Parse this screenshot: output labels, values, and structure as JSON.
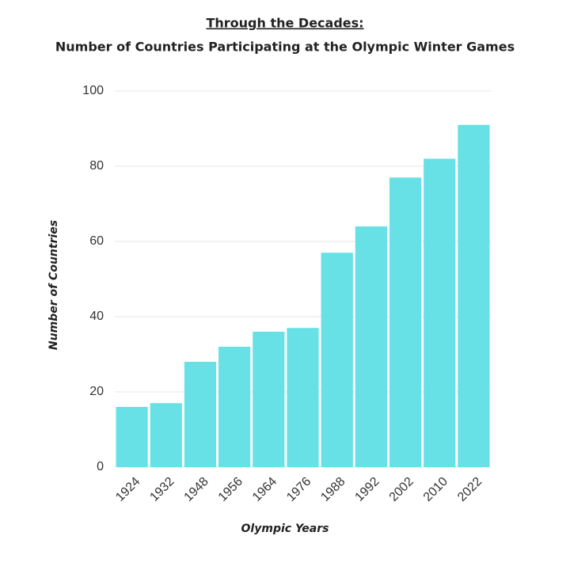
{
  "chart_data": {
    "type": "bar",
    "title": "Through the Decades:",
    "subtitle": "Number of Countries Participating at the Olympic Winter Games",
    "x_label": "Olympic Years",
    "y_label": "Number of Countries",
    "categories": [
      "1924",
      "1932",
      "1948",
      "1956",
      "1964",
      "1976",
      "1988",
      "1992",
      "2002",
      "2010",
      "2022"
    ],
    "values": [
      16,
      17,
      28,
      32,
      36,
      37,
      57,
      64,
      77,
      82,
      91
    ],
    "color": "#67e0e6",
    "ylim": [
      0,
      100
    ],
    "yticks": [
      0,
      20,
      40,
      60,
      80,
      100
    ],
    "grid": true
  }
}
